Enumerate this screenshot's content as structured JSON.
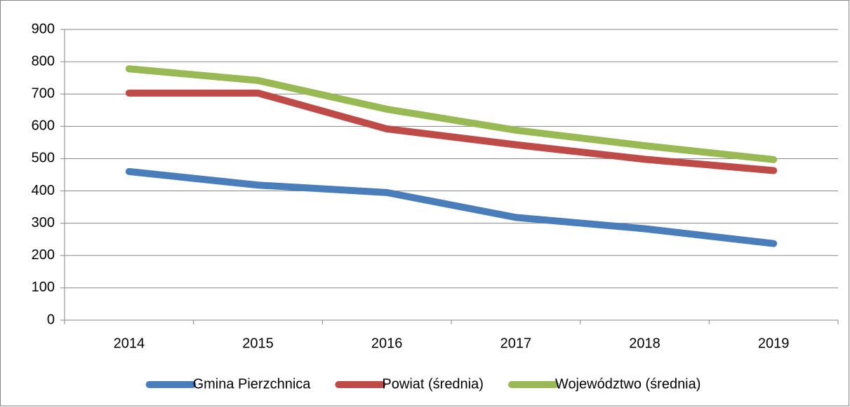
{
  "chart_data": {
    "type": "line",
    "categories": [
      "2014",
      "2015",
      "2016",
      "2017",
      "2018",
      "2019"
    ],
    "series": [
      {
        "name": "Gmina Pierzchnica",
        "color": "#4a7ebb",
        "values": [
          460,
          418,
          395,
          318,
          283,
          237
        ]
      },
      {
        "name": "Powiat (średnia)",
        "color": "#be4b48",
        "values": [
          703,
          703,
          592,
          543,
          498,
          463
        ]
      },
      {
        "name": "Województwo (średnia)",
        "color": "#98b954",
        "values": [
          778,
          742,
          653,
          588,
          540,
          497
        ]
      }
    ],
    "ylim": [
      0,
      900
    ],
    "yticks": [
      0,
      100,
      200,
      300,
      400,
      500,
      600,
      700,
      800,
      900
    ],
    "grid": true,
    "legend": "bottom"
  }
}
